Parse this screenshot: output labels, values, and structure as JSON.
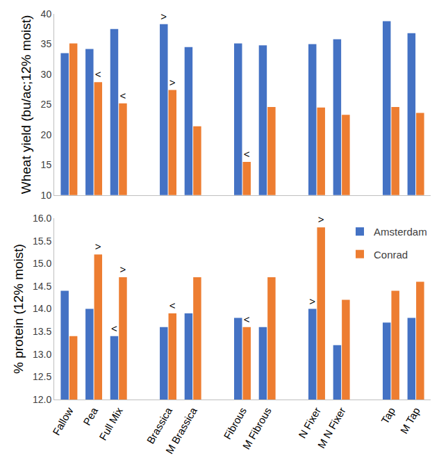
{
  "chart_data": [
    {
      "type": "bar",
      "y_label": "Wheat yield (bu/ac;12% moist)",
      "categories": [
        "Fallow",
        "Pea",
        "Full Mix",
        null,
        "Brassica",
        "M Brassica",
        null,
        "Fibrous",
        "M Fibrous",
        null,
        "N Fixer",
        "M N Fixer",
        null,
        "Tap",
        "M Tap"
      ],
      "ylim": [
        10,
        40
      ],
      "yticks": [
        10,
        15,
        20,
        25,
        30,
        35,
        40
      ],
      "tick_labels": "y",
      "grid": false,
      "series": [
        {
          "name": "Amsterdam",
          "color": "#4472C4",
          "values": [
            33.5,
            34.2,
            37.5,
            null,
            38.3,
            34.5,
            null,
            35.1,
            34.8,
            null,
            35.0,
            35.8,
            null,
            38.8,
            36.8
          ],
          "annotations": [
            null,
            null,
            null,
            null,
            ">",
            null,
            null,
            null,
            null,
            null,
            null,
            null,
            null,
            null,
            null
          ]
        },
        {
          "name": "Conrad",
          "color": "#ED7D31",
          "values": [
            35.1,
            28.7,
            25.2,
            null,
            27.4,
            21.4,
            null,
            15.5,
            24.6,
            null,
            24.5,
            23.3,
            null,
            24.6,
            23.6
          ],
          "annotations": [
            null,
            "<",
            "<",
            null,
            ">",
            null,
            null,
            "<",
            null,
            null,
            null,
            null,
            null,
            null,
            null
          ]
        }
      ]
    },
    {
      "type": "bar",
      "y_label": "% protein (12% moist)",
      "categories": [
        "Fallow",
        "Pea",
        "Full Mix",
        null,
        "Brassica",
        "M Brassica",
        null,
        "Fibrous",
        "M Fibrous",
        null,
        "N Fixer",
        "M N Fixer",
        null,
        "Tap",
        "M Tap"
      ],
      "ylim": [
        12,
        16
      ],
      "yticks": [
        {
          "value": 12,
          "label": "12.0"
        },
        12.5,
        {
          "value": 13,
          "label": "13.0"
        },
        13.5,
        {
          "value": 14,
          "label": "14.0"
        },
        14.5,
        {
          "value": 15,
          "label": "15.0"
        },
        15.5,
        {
          "value": 16,
          "label": "16.0"
        }
      ],
      "grid": false,
      "legend": "top right",
      "series": [
        {
          "name": "Amsterdam",
          "color": "#4472C4",
          "values": [
            14.4,
            14.0,
            13.4,
            null,
            13.6,
            13.9,
            null,
            13.8,
            13.6,
            null,
            14.0,
            13.2,
            null,
            13.7,
            13.8
          ],
          "annotations": [
            null,
            null,
            "<",
            null,
            null,
            null,
            null,
            null,
            null,
            null,
            ">",
            null,
            null,
            null,
            null
          ]
        },
        {
          "name": "Conrad",
          "color": "#ED7D31",
          "values": [
            13.4,
            15.2,
            14.7,
            null,
            13.9,
            14.7,
            null,
            13.6,
            14.7,
            null,
            15.8,
            14.2,
            null,
            14.4,
            14.6
          ],
          "annotations": [
            null,
            ">",
            ">",
            null,
            "<",
            null,
            null,
            "<",
            null,
            null,
            ">",
            null,
            null,
            null,
            null
          ]
        }
      ]
    }
  ]
}
